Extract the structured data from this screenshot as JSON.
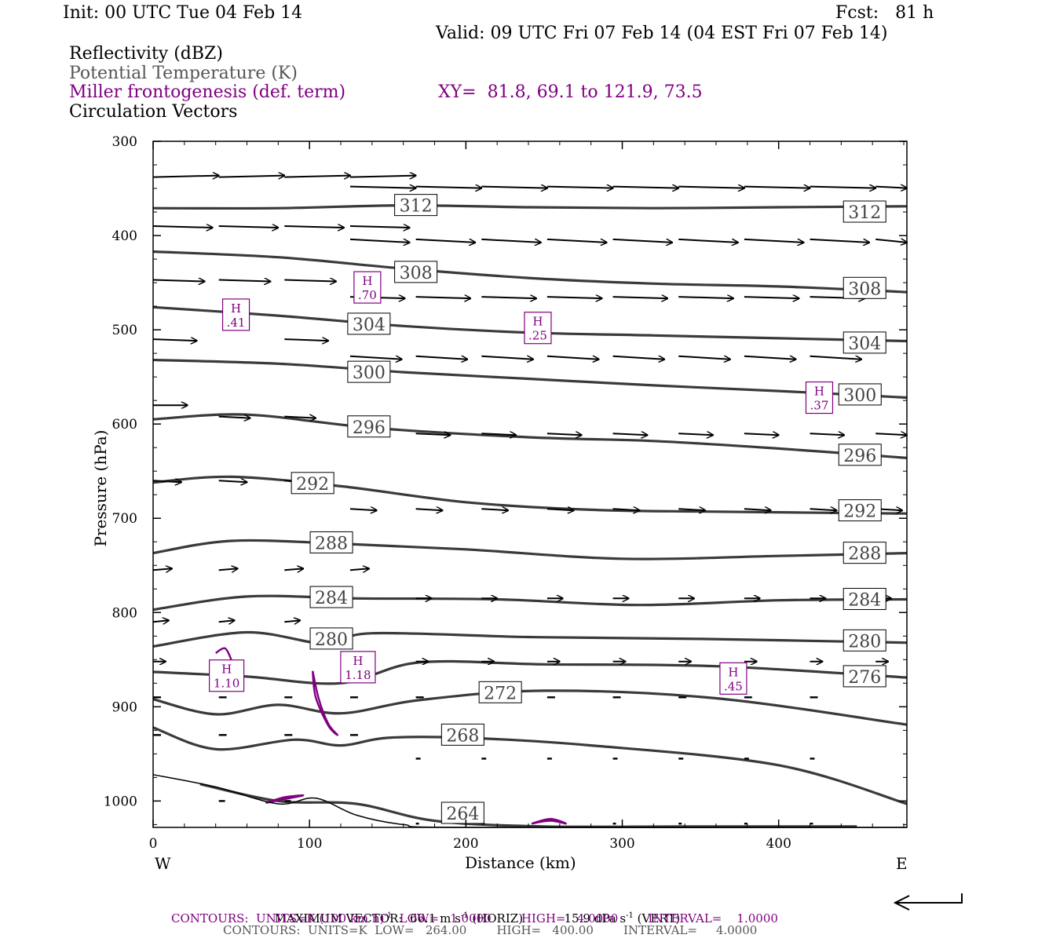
{
  "header": {
    "init": "Init: 00 UTC Tue 04 Feb 14",
    "fcst": "Fcst:   81 h",
    "valid": "Valid: 09 UTC Fri 07 Feb 14 (04 EST Fri 07 Feb 14)",
    "field1": "Reflectivity (dBZ)",
    "field2": "Potential Temperature (K)",
    "field3": "Miller frontogenesis (def. term)",
    "xy": "XY=  81.8, 69.1 to 121.9, 73.5",
    "field4": "Circulation Vectors"
  },
  "footer": {
    "max_vector_label": "MAXIMUM VECTOR:",
    "max_horiz_value": "66.1 m s",
    "max_horiz_exp": "-1",
    "max_horiz_tag": "(HORIZ)",
    "max_vert_value": "15.9 dPa s",
    "max_vert_exp": "-1",
    "max_vert_tag": "(VERT)",
    "contours1_a": "CONTOURS:  UNITS=K (100 km h)",
    "contours1_exp": "-1",
    "contours1_b": "  LOW=   1.0000        HIGH=   4.0000        INTERVAL=    1.0000",
    "contours2": "CONTOURS:  UNITS=K  LOW=   264.00        HIGH=   400.00        INTERVAL=     4.0000"
  },
  "colors": {
    "theta": "#3a3a3a",
    "frontogenesis": "#800080",
    "vector": "#000000",
    "terrain": "#000000"
  },
  "chart_data": {
    "type": "cross-section",
    "xlabel": "Distance (km)",
    "ylabel": "Pressure (hPa)",
    "x_range": [
      0,
      482
    ],
    "y_range": [
      300,
      1028
    ],
    "x_ticks": [
      0,
      100,
      200,
      300,
      400
    ],
    "y_ticks": [
      300,
      400,
      500,
      600,
      700,
      800,
      900,
      1000
    ],
    "x_end_labels": {
      "left": "W",
      "right": "E"
    },
    "theta_contours": [
      {
        "value": 312,
        "labels": [
          [
            168,
            368
          ],
          [
            455,
            375
          ]
        ],
        "points": [
          [
            0,
            371
          ],
          [
            80,
            371
          ],
          [
            160,
            368
          ],
          [
            240,
            370
          ],
          [
            320,
            371
          ],
          [
            400,
            370
          ],
          [
            482,
            369
          ]
        ]
      },
      {
        "value": 308,
        "labels": [
          [
            168,
            439
          ],
          [
            455,
            456
          ]
        ],
        "points": [
          [
            0,
            417
          ],
          [
            80,
            423
          ],
          [
            160,
            435
          ],
          [
            240,
            445
          ],
          [
            320,
            451
          ],
          [
            400,
            454
          ],
          [
            482,
            460
          ]
        ]
      },
      {
        "value": 304,
        "labels": [
          [
            138,
            494
          ],
          [
            455,
            514
          ]
        ],
        "points": [
          [
            0,
            476
          ],
          [
            80,
            485
          ],
          [
            160,
            496
          ],
          [
            240,
            503
          ],
          [
            320,
            506
          ],
          [
            400,
            509
          ],
          [
            482,
            512
          ]
        ]
      },
      {
        "value": 300,
        "labels": [
          [
            138,
            545
          ],
          [
            452,
            569
          ]
        ],
        "points": [
          [
            0,
            532
          ],
          [
            80,
            536
          ],
          [
            160,
            545
          ],
          [
            240,
            552
          ],
          [
            320,
            559
          ],
          [
            400,
            565
          ],
          [
            482,
            572
          ]
        ]
      },
      {
        "value": 296,
        "labels": [
          [
            138,
            603
          ],
          [
            452,
            633
          ]
        ],
        "points": [
          [
            0,
            595
          ],
          [
            60,
            590
          ],
          [
            140,
            604
          ],
          [
            240,
            614
          ],
          [
            320,
            618
          ],
          [
            400,
            626
          ],
          [
            482,
            636
          ]
        ]
      },
      {
        "value": 292,
        "labels": [
          [
            102,
            663
          ],
          [
            452,
            692
          ]
        ],
        "points": [
          [
            0,
            662
          ],
          [
            50,
            656
          ],
          [
            120,
            666
          ],
          [
            200,
            683
          ],
          [
            280,
            691
          ],
          [
            360,
            693
          ],
          [
            482,
            695
          ]
        ]
      },
      {
        "value": 288,
        "labels": [
          [
            114,
            726
          ],
          [
            455,
            737
          ]
        ],
        "points": [
          [
            0,
            737
          ],
          [
            50,
            724
          ],
          [
            120,
            727
          ],
          [
            200,
            733
          ],
          [
            300,
            743
          ],
          [
            400,
            740
          ],
          [
            482,
            737
          ]
        ]
      },
      {
        "value": 284,
        "labels": [
          [
            114,
            784
          ],
          [
            455,
            786
          ]
        ],
        "points": [
          [
            0,
            797
          ],
          [
            60,
            783
          ],
          [
            130,
            785
          ],
          [
            220,
            786
          ],
          [
            310,
            792
          ],
          [
            400,
            787
          ],
          [
            482,
            786
          ]
        ]
      },
      {
        "value": 280,
        "labels": [
          [
            114,
            828
          ],
          [
            455,
            830
          ]
        ],
        "points": [
          [
            0,
            836
          ],
          [
            60,
            821
          ],
          [
            110,
            833
          ],
          [
            140,
            822
          ],
          [
            240,
            826
          ],
          [
            350,
            828
          ],
          [
            482,
            832
          ]
        ]
      },
      {
        "value": 276,
        "labels": [
          [
            455,
            868
          ]
        ],
        "points": [
          [
            0,
            863
          ],
          [
            60,
            868
          ],
          [
            120,
            875
          ],
          [
            170,
            853
          ],
          [
            250,
            855
          ],
          [
            360,
            857
          ],
          [
            482,
            869
          ]
        ]
      },
      {
        "value": 272,
        "labels": [
          [
            222,
            885
          ]
        ],
        "points": [
          [
            0,
            892
          ],
          [
            40,
            908
          ],
          [
            80,
            898
          ],
          [
            120,
            907
          ],
          [
            170,
            893
          ],
          [
            250,
            883
          ],
          [
            360,
            891
          ],
          [
            482,
            919
          ]
        ]
      },
      {
        "value": 268,
        "labels": [
          [
            198,
            930
          ]
        ],
        "points": [
          [
            0,
            922
          ],
          [
            40,
            945
          ],
          [
            90,
            935
          ],
          [
            120,
            941
          ],
          [
            150,
            933
          ],
          [
            200,
            933
          ],
          [
            280,
            941
          ],
          [
            400,
            962
          ],
          [
            482,
            1003
          ]
        ]
      },
      {
        "value": 264,
        "labels": [
          [
            198,
            1013
          ]
        ],
        "points": [
          [
            30,
            982
          ],
          [
            80,
            1000
          ],
          [
            130,
            1003
          ],
          [
            180,
            1021
          ],
          [
            250,
            1027
          ],
          [
            340,
            1027
          ],
          [
            450,
            1027
          ]
        ]
      }
    ],
    "frontogenesis_maxima": [
      {
        "label": "H",
        "value": ".41",
        "x": 53,
        "p": 484
      },
      {
        "label": "H",
        "value": ".70",
        "x": 137,
        "p": 455
      },
      {
        "label": "H",
        "value": ".25",
        "x": 246,
        "p": 498
      },
      {
        "label": "H",
        "value": ".37",
        "x": 426,
        "p": 572
      },
      {
        "label": "H",
        "value": "1.10",
        "x": 47,
        "p": 867
      },
      {
        "label": "H",
        "value": "1.18",
        "x": 131,
        "p": 858
      },
      {
        "label": "H",
        "value": ".45",
        "x": 371,
        "p": 870
      }
    ],
    "frontogenesis_contours": [
      [
        [
          40,
          843
        ],
        [
          46,
          838
        ],
        [
          50,
          850
        ]
      ],
      [
        [
          102,
          862
        ],
        [
          104,
          890
        ],
        [
          112,
          920
        ],
        [
          118,
          930
        ],
        [
          112,
          918
        ],
        [
          106,
          892
        ],
        [
          102,
          862
        ]
      ],
      [
        [
          72,
          1002
        ],
        [
          84,
          996
        ],
        [
          96,
          994
        ],
        [
          84,
          998
        ],
        [
          72,
          1002
        ]
      ],
      [
        [
          242,
          1024
        ],
        [
          254,
          1019
        ],
        [
          264,
          1024
        ],
        [
          254,
          1021
        ],
        [
          242,
          1024
        ]
      ]
    ],
    "terrain": [
      [
        0,
        972
      ],
      [
        40,
        985
      ],
      [
        80,
        1003
      ],
      [
        104,
        997
      ],
      [
        130,
        1015
      ],
      [
        160,
        1025
      ],
      [
        200,
        1028
      ],
      [
        482,
        1028
      ]
    ],
    "vectors": [
      {
        "p": 338,
        "xs": [
          0,
          42,
          84,
          126
        ],
        "u": 42,
        "w": -1
      },
      {
        "p": 348,
        "xs": [
          126,
          168,
          210,
          252,
          294,
          336,
          378,
          420,
          462
        ],
        "u": 42,
        "w": 1
      },
      {
        "p": 390,
        "xs": [
          0,
          42,
          84,
          126
        ],
        "u": 38,
        "w": 1
      },
      {
        "p": 404,
        "xs": [
          126,
          168,
          210,
          252,
          294,
          336,
          378,
          420,
          462
        ],
        "u": 38,
        "w": 2
      },
      {
        "p": 447,
        "xs": [
          0,
          42,
          84
        ],
        "u": 33,
        "w": 1
      },
      {
        "p": 465,
        "xs": [
          126,
          168,
          210,
          252,
          294,
          336,
          378,
          420
        ],
        "u": 35,
        "w": 1
      },
      {
        "p": 510,
        "xs": [
          0,
          84
        ],
        "u": 28,
        "w": 1
      },
      {
        "p": 528,
        "xs": [
          126,
          168,
          210,
          252,
          294,
          336,
          378,
          420
        ],
        "u": 33,
        "w": 2
      },
      {
        "p": 580,
        "xs": [
          0
        ],
        "u": 22,
        "w": 0
      },
      {
        "p": 592,
        "xs": [
          42,
          84
        ],
        "u": 20,
        "w": 1
      },
      {
        "p": 610,
        "xs": [
          168,
          210,
          252,
          294,
          336,
          378,
          420,
          462
        ],
        "u": 22,
        "w": 1
      },
      {
        "p": 660,
        "xs": [
          0,
          42,
          84
        ],
        "u": 18,
        "w": 1
      },
      {
        "p": 690,
        "xs": [
          126,
          168,
          210,
          252,
          294,
          336,
          378,
          420,
          462
        ],
        "u": 17,
        "w": 1
      },
      {
        "p": 755,
        "xs": [
          0,
          42,
          84,
          126
        ],
        "u": 12,
        "w": -1
      },
      {
        "p": 785,
        "xs": [
          168,
          210,
          252,
          294,
          336,
          378,
          420,
          462
        ],
        "u": 10,
        "w": 0
      },
      {
        "p": 810,
        "xs": [
          0,
          42,
          84
        ],
        "u": 10,
        "w": -1
      },
      {
        "p": 852,
        "xs": [
          0,
          126,
          168,
          210,
          252,
          294,
          336,
          378,
          420,
          462
        ],
        "u": 8,
        "w": 0
      },
      {
        "p": 890,
        "xs": [
          0,
          42,
          84,
          126,
          168,
          210,
          252,
          294,
          336,
          378,
          420
        ],
        "u": 5,
        "w": 0
      },
      {
        "p": 930,
        "xs": [
          0,
          42,
          84,
          126
        ],
        "u": 5,
        "w": 0
      },
      {
        "p": 955,
        "xs": [
          168,
          210,
          252,
          294,
          336,
          378,
          420
        ],
        "u": 3,
        "w": 0
      },
      {
        "p": 1000,
        "xs": [
          42,
          84
        ],
        "u": 4,
        "w": 0
      },
      {
        "p": 1024,
        "xs": [
          168,
          210,
          294,
          336,
          378,
          420
        ],
        "u": 2,
        "w": 0
      }
    ]
  }
}
